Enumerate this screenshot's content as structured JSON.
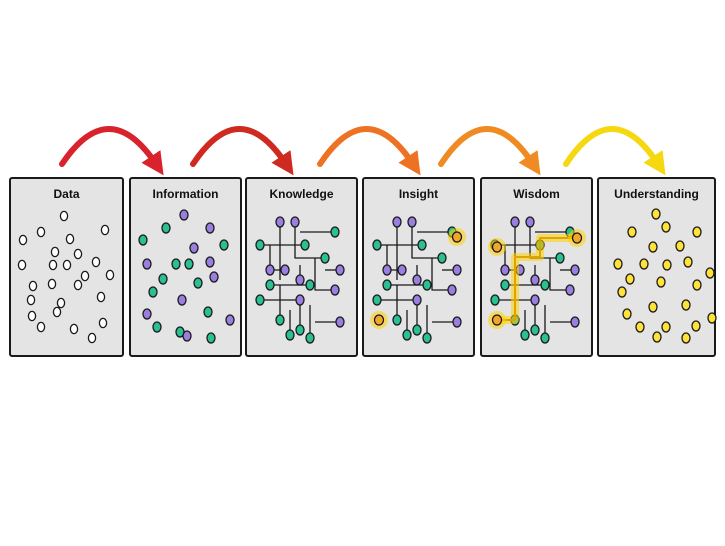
{
  "panels": [
    {
      "label": "Data"
    },
    {
      "label": "Information"
    },
    {
      "label": "Knowledge"
    },
    {
      "label": "Insight"
    },
    {
      "label": "Wisdom"
    },
    {
      "label": "Understanding"
    }
  ],
  "colors": {
    "panel_fill": "#e4e4e4",
    "outline": "#1a1a1a",
    "teal": "#2bbf94",
    "purple": "#9b7fe0",
    "yellow_dot": "#ffe23a",
    "glow": "#ffd200",
    "arrows": [
      "#d8232c",
      "#cf2a22",
      "#ee7224",
      "#f08a22",
      "#f5d80f"
    ]
  }
}
